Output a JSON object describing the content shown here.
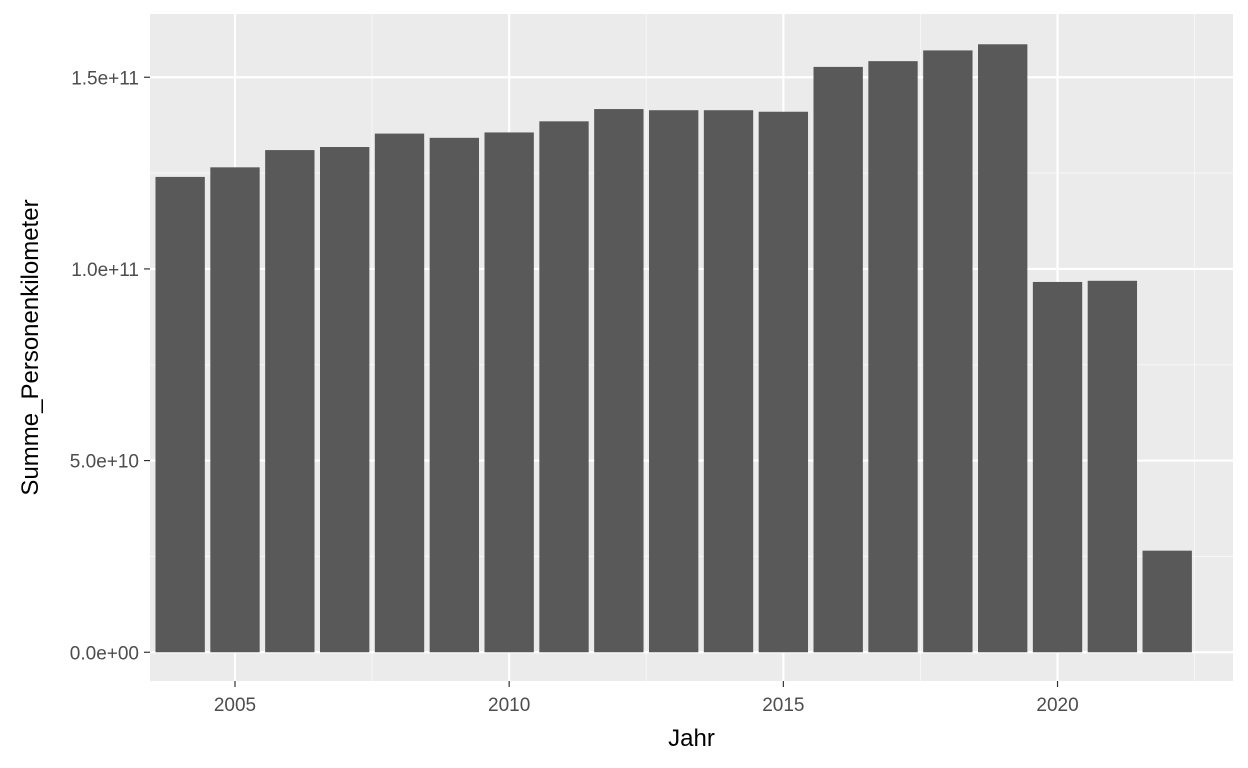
{
  "chart_data": {
    "type": "bar",
    "title": "",
    "xlabel": "Jahr",
    "ylabel": "Summe_Personenkilometer",
    "x": [
      2004,
      2005,
      2006,
      2007,
      2008,
      2009,
      2010,
      2011,
      2012,
      2013,
      2014,
      2015,
      2016,
      2017,
      2018,
      2019,
      2020,
      2021,
      2022
    ],
    "values": [
      124000000000,
      126500000000,
      131000000000,
      131800000000,
      135300000000,
      134200000000,
      135600000000,
      138500000000,
      141700000000,
      141400000000,
      141400000000,
      141000000000,
      152700000000,
      154200000000,
      157000000000,
      158600000000,
      96600000000,
      96900000000,
      26500000000
    ],
    "xlim": [
      2003.45,
      2023.2
    ],
    "ylim": [
      -7500000000,
      166500000000
    ],
    "x_ticks": [
      2005,
      2010,
      2015,
      2020
    ],
    "x_tick_labels": [
      "2005",
      "2010",
      "2015",
      "2020"
    ],
    "y_ticks": [
      0,
      50000000000,
      100000000000,
      150000000000
    ],
    "y_tick_labels": [
      "0.0e+00",
      "5.0e+10",
      "1.0e+11",
      "1.5e+11"
    ],
    "grid": true,
    "legend": "none",
    "colors": {
      "bar": "#595959",
      "panel": "#ebebeb",
      "grid_major": "#ffffff",
      "grid_minor": "#f7f7f7",
      "tick_label": "#4d4d4d",
      "tick_mark": "#333333",
      "axis_title": "#000000"
    }
  }
}
